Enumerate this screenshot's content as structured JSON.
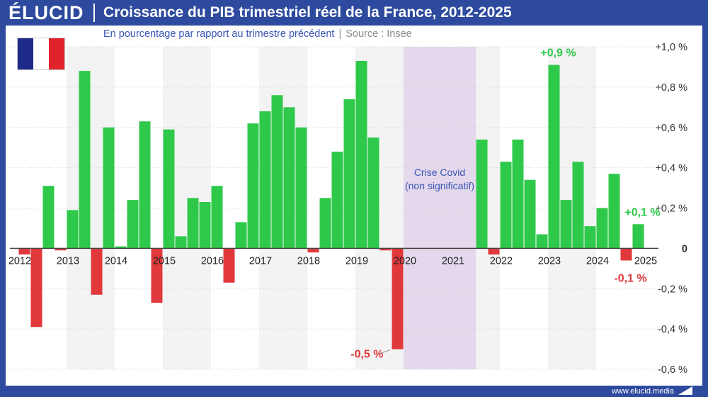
{
  "header": {
    "logo": "ÉLUCID",
    "title": "Croissance du PIB trimestriel réel de la France, 2012-2025"
  },
  "subtitle": {
    "main": "En pourcentage par rapport au trimestre précédent",
    "separator": "|",
    "source": "Source : Insee"
  },
  "footer": {
    "url": "www.elucid.media"
  },
  "colors": {
    "header_bg": "#2e4a9e",
    "positive": "#2ec94a",
    "negative": "#e0383b",
    "covid_band": "#e3d8ec",
    "alt_band": "#f3f3f3",
    "flag": [
      "#1d2a8a",
      "#ffffff",
      "#e1232b"
    ]
  },
  "chart_data": {
    "type": "bar",
    "x_start_year": 2012,
    "quarters_per_year": 4,
    "values": [
      -0.03,
      -0.39,
      0.31,
      -0.01,
      0.19,
      0.88,
      -0.23,
      0.6,
      0.01,
      0.24,
      0.63,
      -0.27,
      0.59,
      0.06,
      0.25,
      0.23,
      0.31,
      -0.17,
      0.13,
      0.62,
      0.68,
      0.76,
      0.7,
      0.6,
      -0.02,
      0.25,
      0.48,
      0.74,
      0.93,
      0.55,
      -0.01,
      -0.5,
      null,
      null,
      null,
      null,
      null,
      null,
      0.54,
      -0.03,
      0.43,
      0.54,
      0.34,
      0.07,
      0.91,
      0.24,
      0.43,
      0.11,
      0.2,
      0.37,
      -0.06,
      0.12
    ],
    "year_labels": [
      "2012",
      "2013",
      "2014",
      "2015",
      "2016",
      "2017",
      "2018",
      "2019",
      "2020",
      "2021",
      "2022",
      "2023",
      "2024",
      "2025"
    ],
    "y_ticks": [
      {
        "value": 1.0,
        "label": "+1,0 %"
      },
      {
        "value": 0.8,
        "label": "+0,8 %"
      },
      {
        "value": 0.6,
        "label": "+0,6 %"
      },
      {
        "value": 0.4,
        "label": "+0,4 %"
      },
      {
        "value": 0.2,
        "label": "+0,2 %"
      },
      {
        "value": 0.0,
        "label": "0"
      },
      {
        "value": -0.2,
        "label": "-0,2 %"
      },
      {
        "value": -0.4,
        "label": "-0,4 %"
      },
      {
        "value": -0.6,
        "label": "-0,6 %"
      }
    ],
    "ylim": [
      -0.6,
      1.0
    ],
    "annotations": [
      {
        "text": "+0,9 %",
        "index": 44,
        "sign": "positive"
      },
      {
        "text": "+0,1 %",
        "index": 51,
        "sign": "positive"
      },
      {
        "text": "-0,1 %",
        "index": 50,
        "sign": "negative"
      },
      {
        "text": "-0,5 %",
        "index": 31,
        "sign": "negative"
      }
    ],
    "covid": {
      "label_line1": "Crise Covid",
      "label_line2": "(non significatif)",
      "from_index": 32,
      "to_index": 37
    },
    "grid": true
  }
}
